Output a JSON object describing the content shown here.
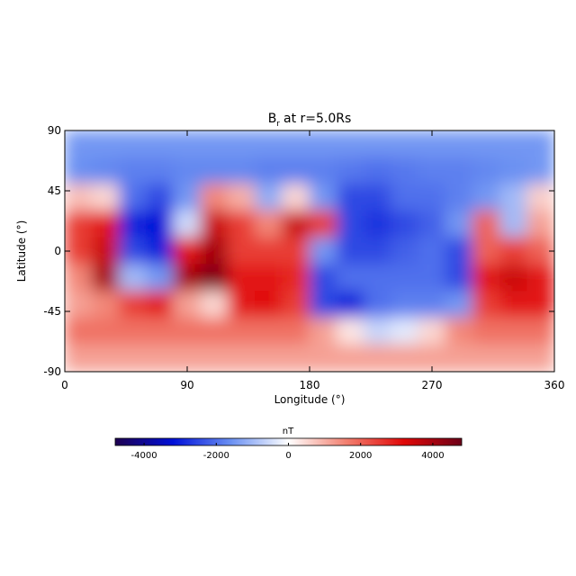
{
  "chart_data": {
    "type": "heatmap",
    "title": "B",
    "title_subscript": "r",
    "title_rest": "at r=5.0Rs",
    "xlabel": "Longitude (°)",
    "ylabel": "Latitude (°)",
    "x": [
      10,
      30,
      50,
      70,
      90,
      110,
      130,
      150,
      170,
      190,
      210,
      230,
      250,
      270,
      290,
      310,
      330,
      350
    ],
    "y": [
      80,
      60,
      40,
      20,
      0,
      -20,
      -40,
      -60,
      -80
    ],
    "z": [
      [
        -1500,
        -1500,
        -1500,
        -1500,
        -1500,
        -1500,
        -1500,
        -1500,
        -1500,
        -1500,
        -1500,
        -1500,
        -1500,
        -1500,
        -1500,
        -1500,
        -1500,
        -1500
      ],
      [
        -1600,
        -1700,
        -1800,
        -1800,
        -1700,
        -1700,
        -1700,
        -1800,
        -1800,
        -1800,
        -1900,
        -2000,
        -1900,
        -1800,
        -1800,
        -1700,
        -1600,
        -1500
      ],
      [
        800,
        500,
        -2000,
        -2500,
        -1500,
        1500,
        1000,
        -1200,
        500,
        -1500,
        -2500,
        -2500,
        -2000,
        -2000,
        -1800,
        -1500,
        -1000,
        600
      ],
      [
        2500,
        3000,
        -3000,
        -3200,
        -500,
        3500,
        2500,
        1500,
        3500,
        2500,
        -2500,
        -2800,
        -2500,
        -2200,
        -1500,
        2000,
        -1000,
        1200
      ],
      [
        2500,
        3500,
        -2500,
        -3000,
        3000,
        4000,
        2500,
        2500,
        2500,
        -1500,
        -2500,
        -2500,
        -2200,
        -2000,
        -2500,
        2000,
        2500,
        2000
      ],
      [
        1500,
        4000,
        -1000,
        -1500,
        4000,
        4500,
        3000,
        3000,
        2800,
        -2500,
        -2000,
        -2000,
        -2000,
        -2000,
        -2500,
        3000,
        3500,
        3000
      ],
      [
        1200,
        1500,
        2500,
        3000,
        1200,
        500,
        3000,
        3200,
        2500,
        -2500,
        -3000,
        -2000,
        -1800,
        -1800,
        -1500,
        2500,
        3000,
        3000
      ],
      [
        1800,
        1800,
        1800,
        1800,
        1800,
        1800,
        1800,
        1800,
        1800,
        1200,
        300,
        -600,
        -300,
        500,
        1500,
        1800,
        1800,
        1800
      ],
      [
        1200,
        1200,
        1200,
        1200,
        1200,
        1200,
        1200,
        1200,
        1200,
        1200,
        1200,
        1200,
        1200,
        1200,
        1200,
        1200,
        1200,
        1200
      ]
    ],
    "xlim": [
      0,
      360
    ],
    "ylim": [
      -90,
      90
    ],
    "xticks": [
      0,
      90,
      180,
      270,
      360
    ],
    "yticks": [
      -90,
      -45,
      0,
      45,
      90
    ],
    "colorbar_label": "nT",
    "clim": [
      -4800,
      4800
    ],
    "cticks": [
      -4000,
      -2000,
      0,
      2000,
      4000
    ],
    "colormap": [
      "#1e0050",
      "#0010d8",
      "#6a90f2",
      "#ffffff",
      "#f28070",
      "#e00808",
      "#6c0018"
    ]
  }
}
